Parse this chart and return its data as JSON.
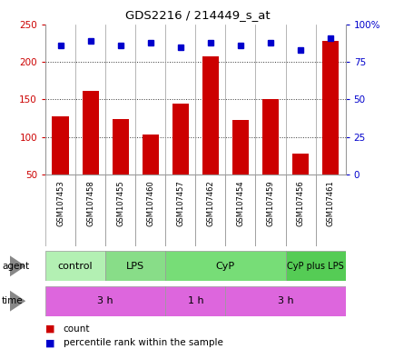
{
  "title": "GDS2216 / 214449_s_at",
  "samples": [
    "GSM107453",
    "GSM107458",
    "GSM107455",
    "GSM107460",
    "GSM107457",
    "GSM107462",
    "GSM107454",
    "GSM107459",
    "GSM107456",
    "GSM107461"
  ],
  "counts": [
    128,
    162,
    124,
    103,
    144,
    208,
    123,
    151,
    78,
    228
  ],
  "percentile_ranks": [
    86,
    89,
    86,
    88,
    85,
    88,
    86,
    88,
    83,
    91
  ],
  "ylim_left": [
    50,
    250
  ],
  "ylim_right": [
    0,
    100
  ],
  "yticks_left": [
    50,
    100,
    150,
    200,
    250
  ],
  "yticks_right": [
    0,
    25,
    50,
    75,
    100
  ],
  "bar_color": "#cc0000",
  "dot_color": "#0000cc",
  "agent_groups": [
    {
      "label": "control",
      "start": 0,
      "end": 2,
      "color": "#b3f0b3"
    },
    {
      "label": "LPS",
      "start": 2,
      "end": 4,
      "color": "#88dd88"
    },
    {
      "label": "CyP",
      "start": 4,
      "end": 8,
      "color": "#77dd77"
    },
    {
      "label": "CyP plus LPS",
      "start": 8,
      "end": 10,
      "color": "#55cc55"
    }
  ],
  "time_groups": [
    {
      "label": "3 h",
      "start": 0,
      "end": 4
    },
    {
      "label": "1 h",
      "start": 4,
      "end": 6
    },
    {
      "label": "3 h",
      "start": 6,
      "end": 10
    }
  ],
  "time_color": "#dd66dd",
  "grid_color": "#333333",
  "bg_color": "#ffffff",
  "sample_row_color": "#cccccc",
  "left_color": "#cc0000",
  "right_color": "#0000cc",
  "border_color": "#999999"
}
